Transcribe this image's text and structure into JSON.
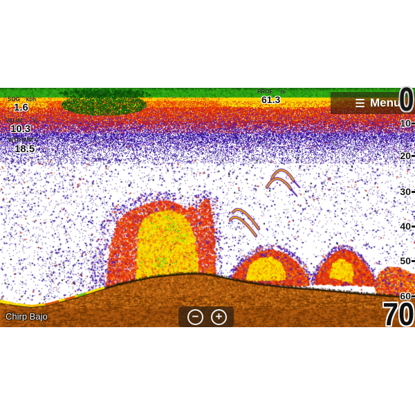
{
  "readouts": {
    "sog": {
      "label": "SOG",
      "unit": "kph",
      "value": "1.6"
    },
    "battery": {
      "label": "VALIM",
      "unit": "V",
      "value": "10.3"
    },
    "water_temp": {
      "label": "WTRTMP",
      "unit": "°C",
      "value": "18.5"
    },
    "depth": {
      "label": "PROF",
      "unit": "m",
      "value": "61.3"
    }
  },
  "menu": {
    "label": "Menu"
  },
  "depth_scale": {
    "range_top": "0",
    "range_bottom": "70",
    "ticks": [
      "10",
      "20",
      "30",
      "40",
      "50",
      "60"
    ]
  },
  "channel_label": "Chirp Bajo",
  "zoom_controls": {
    "zoom_out": "−",
    "zoom_in": "+"
  },
  "colors": {
    "background": "#ffffff",
    "surface_green": "#2fa816",
    "surface_green_dark": "#17660e",
    "surface_green_blob": "#0c4a08",
    "clutter_yellow": "#f8df00",
    "clutter_orange": "#f07c00",
    "clutter_red": "#e63012",
    "clutter_red_dark": "#c7240c",
    "noise_purple": "#5a1fc2",
    "noise_indigo": "#2f1c9e",
    "noise_dark": "#241077",
    "school_red": "#e63211",
    "school_orange": "#f67c00",
    "school_yellow": "#f6e400",
    "school_green": "#58d414",
    "fringe_purple": "#5520b0",
    "arch_purple": "#5520b0",
    "bottom_brown": "#b25a0f",
    "bottom_brown_dark": "#7d3e06",
    "bottom_brown_light": "#d3791b",
    "bottom_edge": "#2f1d06",
    "bottom_line_yellow": "#ffdf00",
    "bottom_line_red": "#e84010",
    "bottom_line_green": "#55c814"
  }
}
